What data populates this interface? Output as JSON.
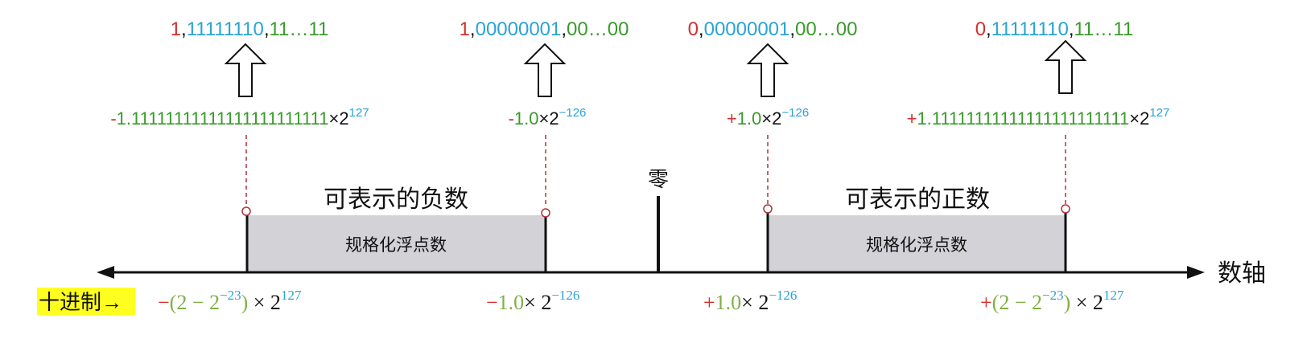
{
  "colors": {
    "sign": "#d0312d",
    "exponent": "#29a3d6",
    "mantissa": "#3a9a2c",
    "decimal_green": "#7fb046",
    "text": "#111111",
    "axis": "#111111",
    "region_fill": "#d3d2d6",
    "dashed": "#b0303a",
    "highlight": "#ffff1f"
  },
  "binary_codes": [
    {
      "sign": "1",
      "sep1": ",",
      "exponent": "11111110",
      "sep2": ",",
      "mantissa": "11…11"
    },
    {
      "sign": "1",
      "sep1": ",",
      "exponent": "00000001",
      "sep2": ",",
      "mantissa": "00…00"
    },
    {
      "sign": "0",
      "sep1": ",",
      "exponent": "00000001",
      "sep2": ",",
      "mantissa": "00…00"
    },
    {
      "sign": "0",
      "sep1": ",",
      "exponent": "11111110",
      "sep2": ",",
      "mantissa": "11…11"
    }
  ],
  "binary_values": [
    {
      "sign": "-",
      "mantissa": "1.11111111111111111111111",
      "times": "×2",
      "exp": "127"
    },
    {
      "sign": "-",
      "mantissa": "1.0",
      "times": "×2",
      "exp": "−126"
    },
    {
      "sign": "+",
      "mantissa": "1.0",
      "times": "×2",
      "exp": "−126"
    },
    {
      "sign": "+",
      "mantissa": "1.11111111111111111111111",
      "times": "×2",
      "exp": "127"
    }
  ],
  "zero_label": "零",
  "regions": [
    {
      "top_label": "可表示的负数",
      "inner_label": "规格化浮点数"
    },
    {
      "top_label": "可表示的正数",
      "inner_label": "规格化浮点数"
    }
  ],
  "axis_label": "数轴",
  "decimal_tag": "十进制→",
  "decimal_values": [
    {
      "sign": "−",
      "body": "(2 − 2",
      "body_exp": "−23",
      "close": ")",
      "times": " × 2",
      "exp": "127"
    },
    {
      "sign": "−",
      "body": "1.0",
      "times": "× 2",
      "exp": "−126"
    },
    {
      "sign": "+",
      "body": "1.0",
      "times": "× 2",
      "exp": "−126"
    },
    {
      "sign": "+",
      "body": "(2 − 2",
      "body_exp": "−23",
      "close": ")",
      "times": " × 2",
      "exp": "127"
    }
  ]
}
